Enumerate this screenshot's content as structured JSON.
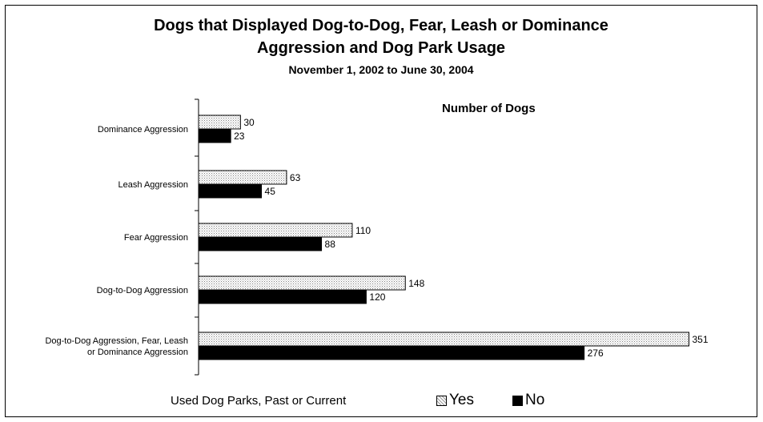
{
  "title_line1": "Dogs that Displayed Dog-to-Dog, Fear, Leash or Dominance",
  "title_line2": "Aggression and Dog Park Usage",
  "subtitle": "November 1, 2002 to June 30, 2004",
  "legend": {
    "title": "Used Dog Parks, Past or Current",
    "items": [
      {
        "label": "Yes",
        "color": "#f2f2f2",
        "pattern": "dotted"
      },
      {
        "label": "No",
        "color": "#000000",
        "pattern": "solid"
      }
    ]
  },
  "chart_data": {
    "type": "bar",
    "orientation": "horizontal",
    "title": "Dogs that Displayed Dog-to-Dog, Fear, Leash or Dominance Aggression and Dog Park Usage",
    "subtitle": "November 1, 2002 to June 30, 2004",
    "value_axis_title": "Number of Dogs",
    "categories": [
      "Dominance Aggression",
      "Leash Aggression",
      "Fear Aggression",
      "Dog-to-Dog Aggression",
      "Dog-to-Dog Aggression, Fear, Leash or Dominance Aggression"
    ],
    "series": [
      {
        "name": "Yes",
        "values": [
          30,
          63,
          110,
          148,
          351
        ],
        "color": "#f2f2f2",
        "pattern": "dotted"
      },
      {
        "name": "No",
        "values": [
          23,
          45,
          88,
          120,
          276
        ],
        "color": "#000000",
        "pattern": "solid"
      }
    ],
    "legend_title": "Used Dog Parks, Past or Current",
    "legend_position": "bottom",
    "xlim": [
      0,
      351
    ],
    "grid": false,
    "data_labels": true,
    "value_axis_visible": false
  }
}
